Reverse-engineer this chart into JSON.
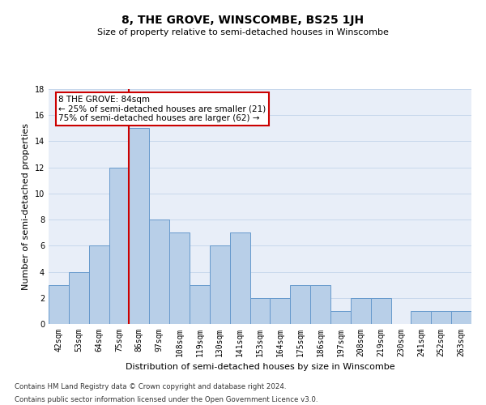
{
  "title": "8, THE GROVE, WINSCOMBE, BS25 1JH",
  "subtitle": "Size of property relative to semi-detached houses in Winscombe",
  "xlabel": "Distribution of semi-detached houses by size in Winscombe",
  "ylabel": "Number of semi-detached properties",
  "categories": [
    "42sqm",
    "53sqm",
    "64sqm",
    "75sqm",
    "86sqm",
    "97sqm",
    "108sqm",
    "119sqm",
    "130sqm",
    "141sqm",
    "153sqm",
    "164sqm",
    "175sqm",
    "186sqm",
    "197sqm",
    "208sqm",
    "219sqm",
    "230sqm",
    "241sqm",
    "252sqm",
    "263sqm"
  ],
  "values": [
    3,
    4,
    6,
    12,
    15,
    8,
    7,
    3,
    6,
    7,
    2,
    2,
    3,
    3,
    1,
    2,
    2,
    0,
    1,
    1,
    1
  ],
  "highlight_index": 4,
  "bar_color": "#b8cfe8",
  "bar_edge_color": "#6699cc",
  "highlight_line_color": "#cc0000",
  "annotation_text": "8 THE GROVE: 84sqm\n← 25% of semi-detached houses are smaller (21)\n75% of semi-detached houses are larger (62) →",
  "annotation_box_color": "white",
  "annotation_box_edge": "#cc0000",
  "ylim": [
    0,
    18
  ],
  "yticks": [
    0,
    2,
    4,
    6,
    8,
    10,
    12,
    14,
    16,
    18
  ],
  "footnote1": "Contains HM Land Registry data © Crown copyright and database right 2024.",
  "footnote2": "Contains public sector information licensed under the Open Government Licence v3.0.",
  "grid_color": "#c8d8ec",
  "bg_color": "#e8eef8",
  "title_fontsize": 10,
  "subtitle_fontsize": 8,
  "ylabel_fontsize": 8,
  "xlabel_fontsize": 8,
  "tick_fontsize": 7,
  "annot_fontsize": 7.5
}
